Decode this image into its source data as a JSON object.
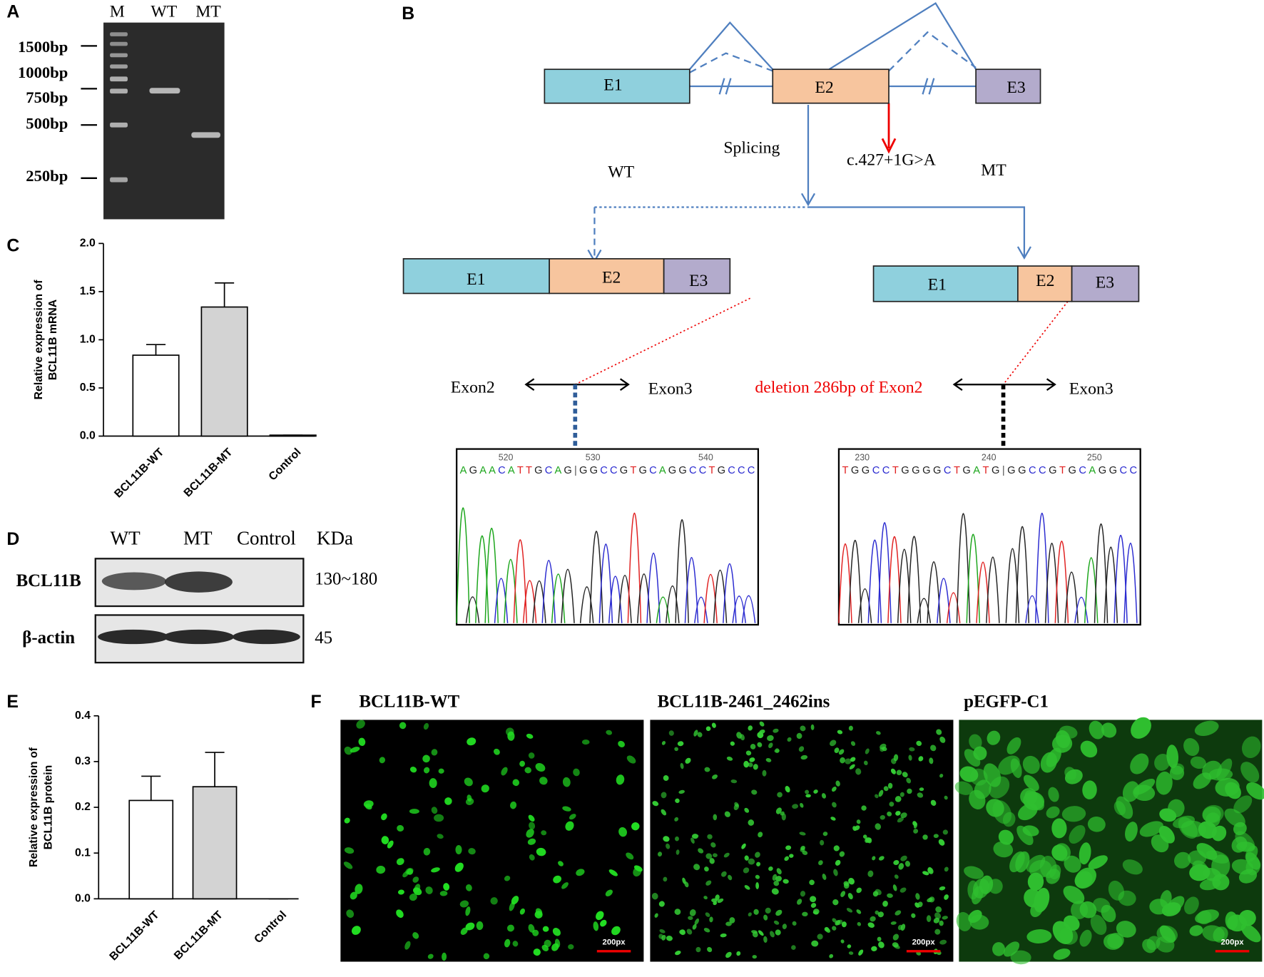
{
  "panel_labels": [
    "A",
    "B",
    "C",
    "D",
    "E",
    "F"
  ],
  "gel": {
    "lanes": [
      "M",
      "WT",
      "MT"
    ],
    "markers": [
      "1500bp",
      "1000bp",
      "750bp",
      "500bp",
      "250bp"
    ]
  },
  "splicing": {
    "exons": [
      "E1",
      "E2",
      "E3"
    ],
    "splicing": "Splicing",
    "mutation": "c.427+1G>A",
    "wt": "WT",
    "mt": "MT",
    "wt_exons": [
      "E1",
      "E2",
      "E3"
    ],
    "mt_exons": [
      "E1",
      "E2",
      "E3"
    ],
    "wt_junction": [
      "Exon2",
      "Exon3"
    ],
    "mt_junction": [
      "deletion 286bp of  Exon2",
      "Exon3"
    ],
    "wt_trace": {
      "positions": [
        520,
        530,
        540
      ],
      "sequence": "AGAACATTGCAG|GGCCGTGCAGGCCTGCCC"
    },
    "mt_trace": {
      "positions": [
        230,
        240,
        250
      ],
      "sequence": "TGGCCTGGGGCTGATG|GGCCGTGCAGGCC"
    }
  },
  "western": {
    "lanes": [
      "WT",
      "MT",
      "Control"
    ],
    "unit": "KDa",
    "proteins": [
      "BCL11B",
      "β-actin"
    ],
    "sizes": [
      "130~180",
      "45"
    ]
  },
  "chart_data": [
    {
      "type": "bar",
      "y_label": [
        "Relative expression of",
        "BCL11B mRNA"
      ],
      "categories": [
        "BCL11B-WT",
        "BCL11B-MT",
        "Control"
      ],
      "values": [
        0.84,
        1.34,
        0.01
      ],
      "errors": [
        0.11,
        0.25,
        0
      ],
      "colors": [
        "#ffffff",
        "#d3d3d3",
        "#ffffff"
      ],
      "ylim": [
        0,
        2
      ],
      "yticks": [
        {
          "value": 0,
          "label": "0.0"
        },
        0.5,
        {
          "value": 1,
          "label": "1.0"
        },
        1.5,
        {
          "value": 2,
          "label": "2.0"
        }
      ]
    },
    {
      "type": "bar",
      "y_label": [
        "Relative expression of",
        "BCL11B protein"
      ],
      "categories": [
        "BCL11B-WT",
        "BCL11B-MT",
        "Control"
      ],
      "values": [
        0.215,
        0.245,
        0
      ],
      "errors": [
        0.053,
        0.075,
        0
      ],
      "colors": [
        "#ffffff",
        "#d3d3d3",
        "#ffffff"
      ],
      "ylim": [
        0,
        0.4
      ],
      "yticks": [
        {
          "value": 0,
          "label": "0.0"
        },
        0.1,
        0.2,
        0.3,
        0.4
      ]
    }
  ],
  "fluorescence": {
    "titles": [
      "BCL11B-WT",
      "BCL11B-2461_2462ins",
      "pEGFP-C1"
    ],
    "scale_bars": [
      "200px",
      "200px",
      "200px"
    ]
  }
}
